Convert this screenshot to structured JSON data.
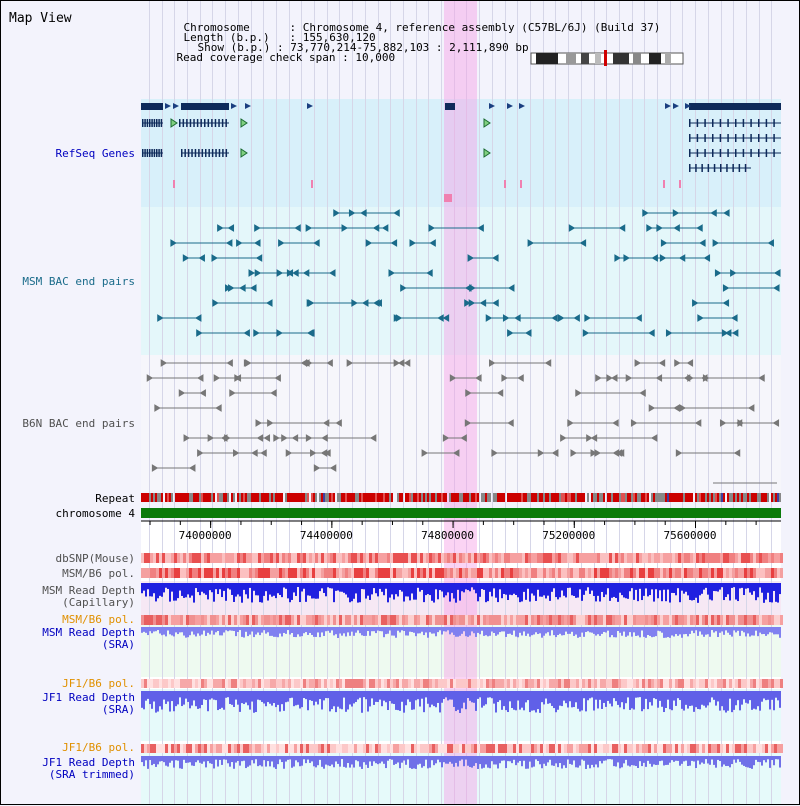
{
  "map_title": "Map View",
  "header": {
    "rows": [
      {
        "label": "Chromosome",
        "value": "Chromosome 4, reference assembly (C57BL/6J) (Build 37)"
      },
      {
        "label": "Length (b.p.)",
        "value": "155,630,120"
      },
      {
        "label": "Show (b.p.)",
        "value": "73,770,214-75,882,103 : 2,111,890 bp"
      },
      {
        "label": "Read coverage check span",
        "value": "10,000"
      }
    ]
  },
  "tracks": {
    "refseq": "RefSeq Genes",
    "msm_bac": "MSM BAC end pairs",
    "b6n_bac": "B6N BAC end pairs",
    "repeat": "Repeat",
    "chromosome": "chromosome 4",
    "dbsnp": "dbSNP(Mouse)",
    "msm_b6_pol_1": "MSM/B6 pol.",
    "msm_read_depth_cap_1": "MSM Read Depth",
    "msm_read_depth_cap_2": "(Capillary)",
    "msm_b6_pol_2": "MSM/B6 pol.",
    "msm_read_depth_sra_1": "MSM Read Depth",
    "msm_read_depth_sra_2": "(SRA)",
    "jf1_b6_pol_1": "JF1/B6 pol.",
    "jf1_read_depth_sra_1": "JF1 Read Depth",
    "jf1_read_depth_sra_2": "(SRA)",
    "jf1_b6_pol_2": "JF1/B6 pol.",
    "jf1_read_depth_trim_1": "JF1 Read Depth",
    "jf1_read_depth_trim_2": "(SRA trimmed)"
  },
  "axis": {
    "ticks": [
      {
        "pos": 74000000,
        "label": "74000000"
      },
      {
        "pos": 74400000,
        "label": "74400000"
      },
      {
        "pos": 74800000,
        "label": "74800000"
      },
      {
        "pos": 75200000,
        "label": "75200000"
      },
      {
        "pos": 75600000,
        "label": "75600000"
      }
    ],
    "start": 73770214,
    "end": 75882103
  },
  "colors": {
    "label_blue": "#0000c0",
    "label_orange": "#e09000",
    "label_gray": "#505050",
    "refseq_bg": "#d8f0fa",
    "msm_bg": "#e4f7fa",
    "b6n_bg": "#f6f6fb",
    "gene": "#0e2a5a",
    "msm_feature": "#1a6b8a",
    "b6n_feature": "#777777",
    "highlight": "#f6a0e6",
    "chromosome": "#0a7a0a"
  }
}
